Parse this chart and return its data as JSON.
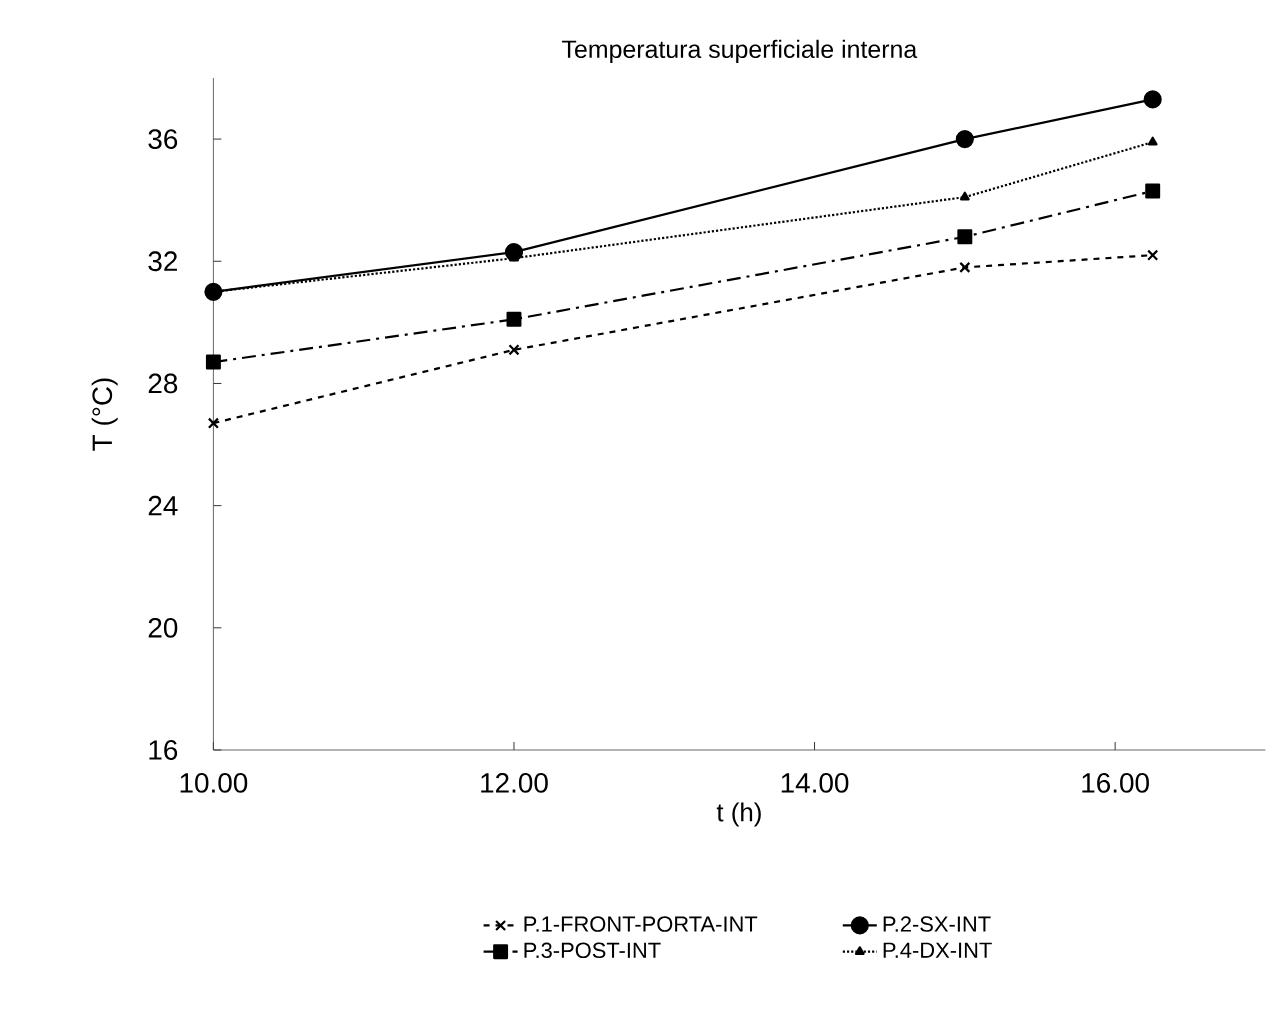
{
  "chart_data": {
    "type": "line",
    "title": "Temperatura superficiale interna",
    "xlabel": "t (h)",
    "ylabel": "T  (°C)",
    "x": [
      10,
      12,
      15,
      16.25
    ],
    "series": [
      {
        "name": "P.1-FRONT-PORTA-INT",
        "color": "#000000",
        "marker": "cross",
        "line_style": "dashed",
        "values": [
          26.7,
          29.1,
          31.8,
          32.2
        ]
      },
      {
        "name": "P.2-SX-INT",
        "color": "#000000",
        "marker": "circle",
        "line_style": "solid",
        "values": [
          31.0,
          32.3,
          36.0,
          37.3
        ]
      },
      {
        "name": "P.3-POST-INT",
        "color": "#000000",
        "marker": "square",
        "line_style": "dashdot",
        "values": [
          28.7,
          30.1,
          32.8,
          34.3
        ]
      },
      {
        "name": "P.4-DX-INT",
        "color": "#000000",
        "marker": "triangle",
        "line_style": "dotted",
        "values": [
          31.0,
          32.1,
          34.1,
          35.9
        ]
      }
    ],
    "xlim": [
      10,
      17
    ],
    "ylim": [
      16,
      38
    ],
    "xticks": [
      {
        "value": 10,
        "label": "10.00"
      },
      {
        "value": 12,
        "label": "12.00"
      },
      {
        "value": 14,
        "label": "14.00"
      },
      {
        "value": 16,
        "label": "16.00"
      }
    ],
    "yticks": [
      16,
      20,
      24,
      28,
      32,
      36
    ],
    "grid": false,
    "legend": "bottom"
  }
}
